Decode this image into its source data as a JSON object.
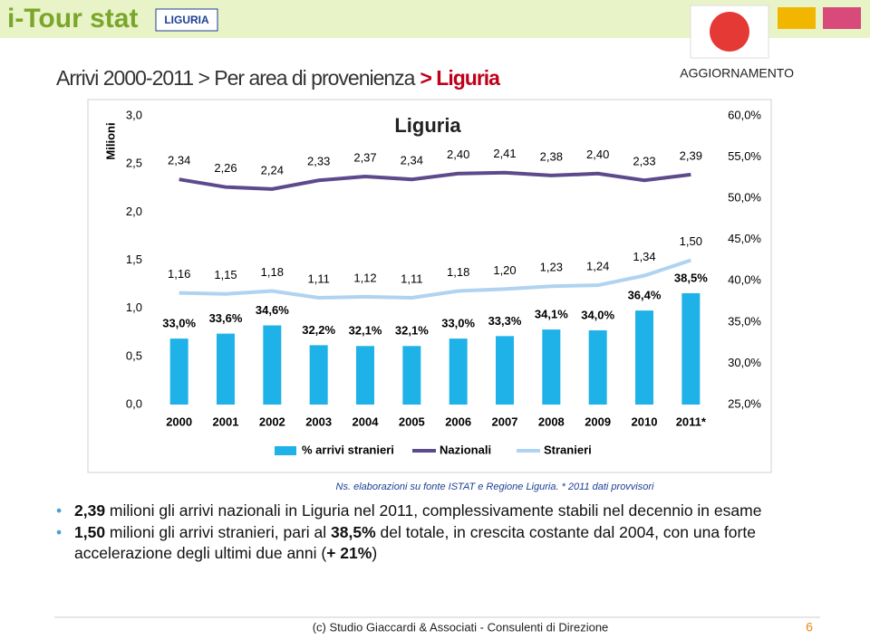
{
  "header": {
    "logo": "i-Tour stat",
    "region": "LIGURIA",
    "title": "Arrivi 2000-2011 > Per area di provenienza",
    "highlight": "> Liguria",
    "badge": "AGGIORNAMENTO"
  },
  "chart_data": {
    "type": "combo",
    "title": "Liguria",
    "y_label": "Milioni",
    "categories": [
      "2000",
      "2001",
      "2002",
      "2003",
      "2004",
      "2005",
      "2006",
      "2007",
      "2008",
      "2009",
      "2010",
      "2011*"
    ],
    "ylim": [
      0,
      3
    ],
    "yticks": [
      {
        "value": 0,
        "label": "0,0"
      },
      {
        "value": 0.5,
        "label": "0,5"
      },
      {
        "value": 1,
        "label": "1,0"
      },
      {
        "value": 1.5,
        "label": "1,5"
      },
      {
        "value": 2,
        "label": "2,0"
      },
      {
        "value": 2.5,
        "label": "2,5"
      },
      {
        "value": 3,
        "label": "3,0"
      }
    ],
    "y2lim": [
      25,
      60
    ],
    "y2ticks": [
      {
        "value": 25,
        "label": "25,0%"
      },
      {
        "value": 30,
        "label": "30,0%"
      },
      {
        "value": 35,
        "label": "35,0%"
      },
      {
        "value": 40,
        "label": "40,0%"
      },
      {
        "value": 45,
        "label": "45,0%"
      },
      {
        "value": 50,
        "label": "50,0%"
      },
      {
        "value": 55,
        "label": "55,0%"
      },
      {
        "value": 60,
        "label": "60,0%"
      }
    ],
    "legend": "bottom",
    "series": [
      {
        "name": "% arrivi stranieri",
        "type": "bar",
        "axis": "y2",
        "color": "#1fb2e8",
        "values": [
          33.0,
          33.6,
          34.6,
          32.2,
          32.1,
          32.1,
          33.0,
          33.3,
          34.1,
          34.0,
          36.4,
          38.5
        ],
        "value_labels": [
          "33,0%",
          "33,6%",
          "34,6%",
          "32,2%",
          "32,1%",
          "32,1%",
          "33,0%",
          "33,3%",
          "34,1%",
          "34,0%",
          "36,4%",
          "38,5%"
        ]
      },
      {
        "name": "Nazionali",
        "type": "line",
        "color": "#5d4a8c",
        "values": [
          2.34,
          2.26,
          2.24,
          2.33,
          2.37,
          2.34,
          2.4,
          2.41,
          2.38,
          2.4,
          2.33,
          2.39
        ],
        "value_labels": [
          "2,34",
          "2,26",
          "2,24",
          "2,33",
          "2,37",
          "2,34",
          "2,40",
          "2,41",
          "2,38",
          "2,40",
          "2,33",
          "2,39"
        ]
      },
      {
        "name": "Stranieri",
        "type": "line",
        "color": "#afd3f0",
        "values": [
          1.16,
          1.15,
          1.18,
          1.11,
          1.12,
          1.11,
          1.18,
          1.2,
          1.23,
          1.24,
          1.34,
          1.5
        ],
        "value_labels": [
          "1,16",
          "1,15",
          "1,18",
          "1,11",
          "1,12",
          "1,11",
          "1,18",
          "1,20",
          "1,23",
          "1,24",
          "1,34",
          "1,50"
        ]
      }
    ],
    "source": "Ns. elaborazioni su fonte ISTAT e Regione Liguria.  * 2011 dati provvisori"
  },
  "bullets": [
    [
      {
        "text": "2,39",
        "bold": true
      },
      {
        "text": " milioni gli arrivi nazionali in Liguria nel 2011, complessivamente stabili nel decennio in esame",
        "bold": false
      }
    ],
    [
      {
        "text": "1,50",
        "bold": true
      },
      {
        "text": " milioni gli arrivi stranieri, pari al ",
        "bold": false
      },
      {
        "text": "38,5%",
        "bold": true
      },
      {
        "text": " del totale, in crescita costante dal 2004, con una forte accelerazione degli ultimi due anni (",
        "bold": false
      },
      {
        "text": "+ 21%",
        "bold": true
      },
      {
        "text": ")",
        "bold": false
      }
    ]
  ],
  "footer": {
    "credit": "(c) Studio Giaccardi & Associati - Consulenti di Direzione",
    "page": "6"
  }
}
